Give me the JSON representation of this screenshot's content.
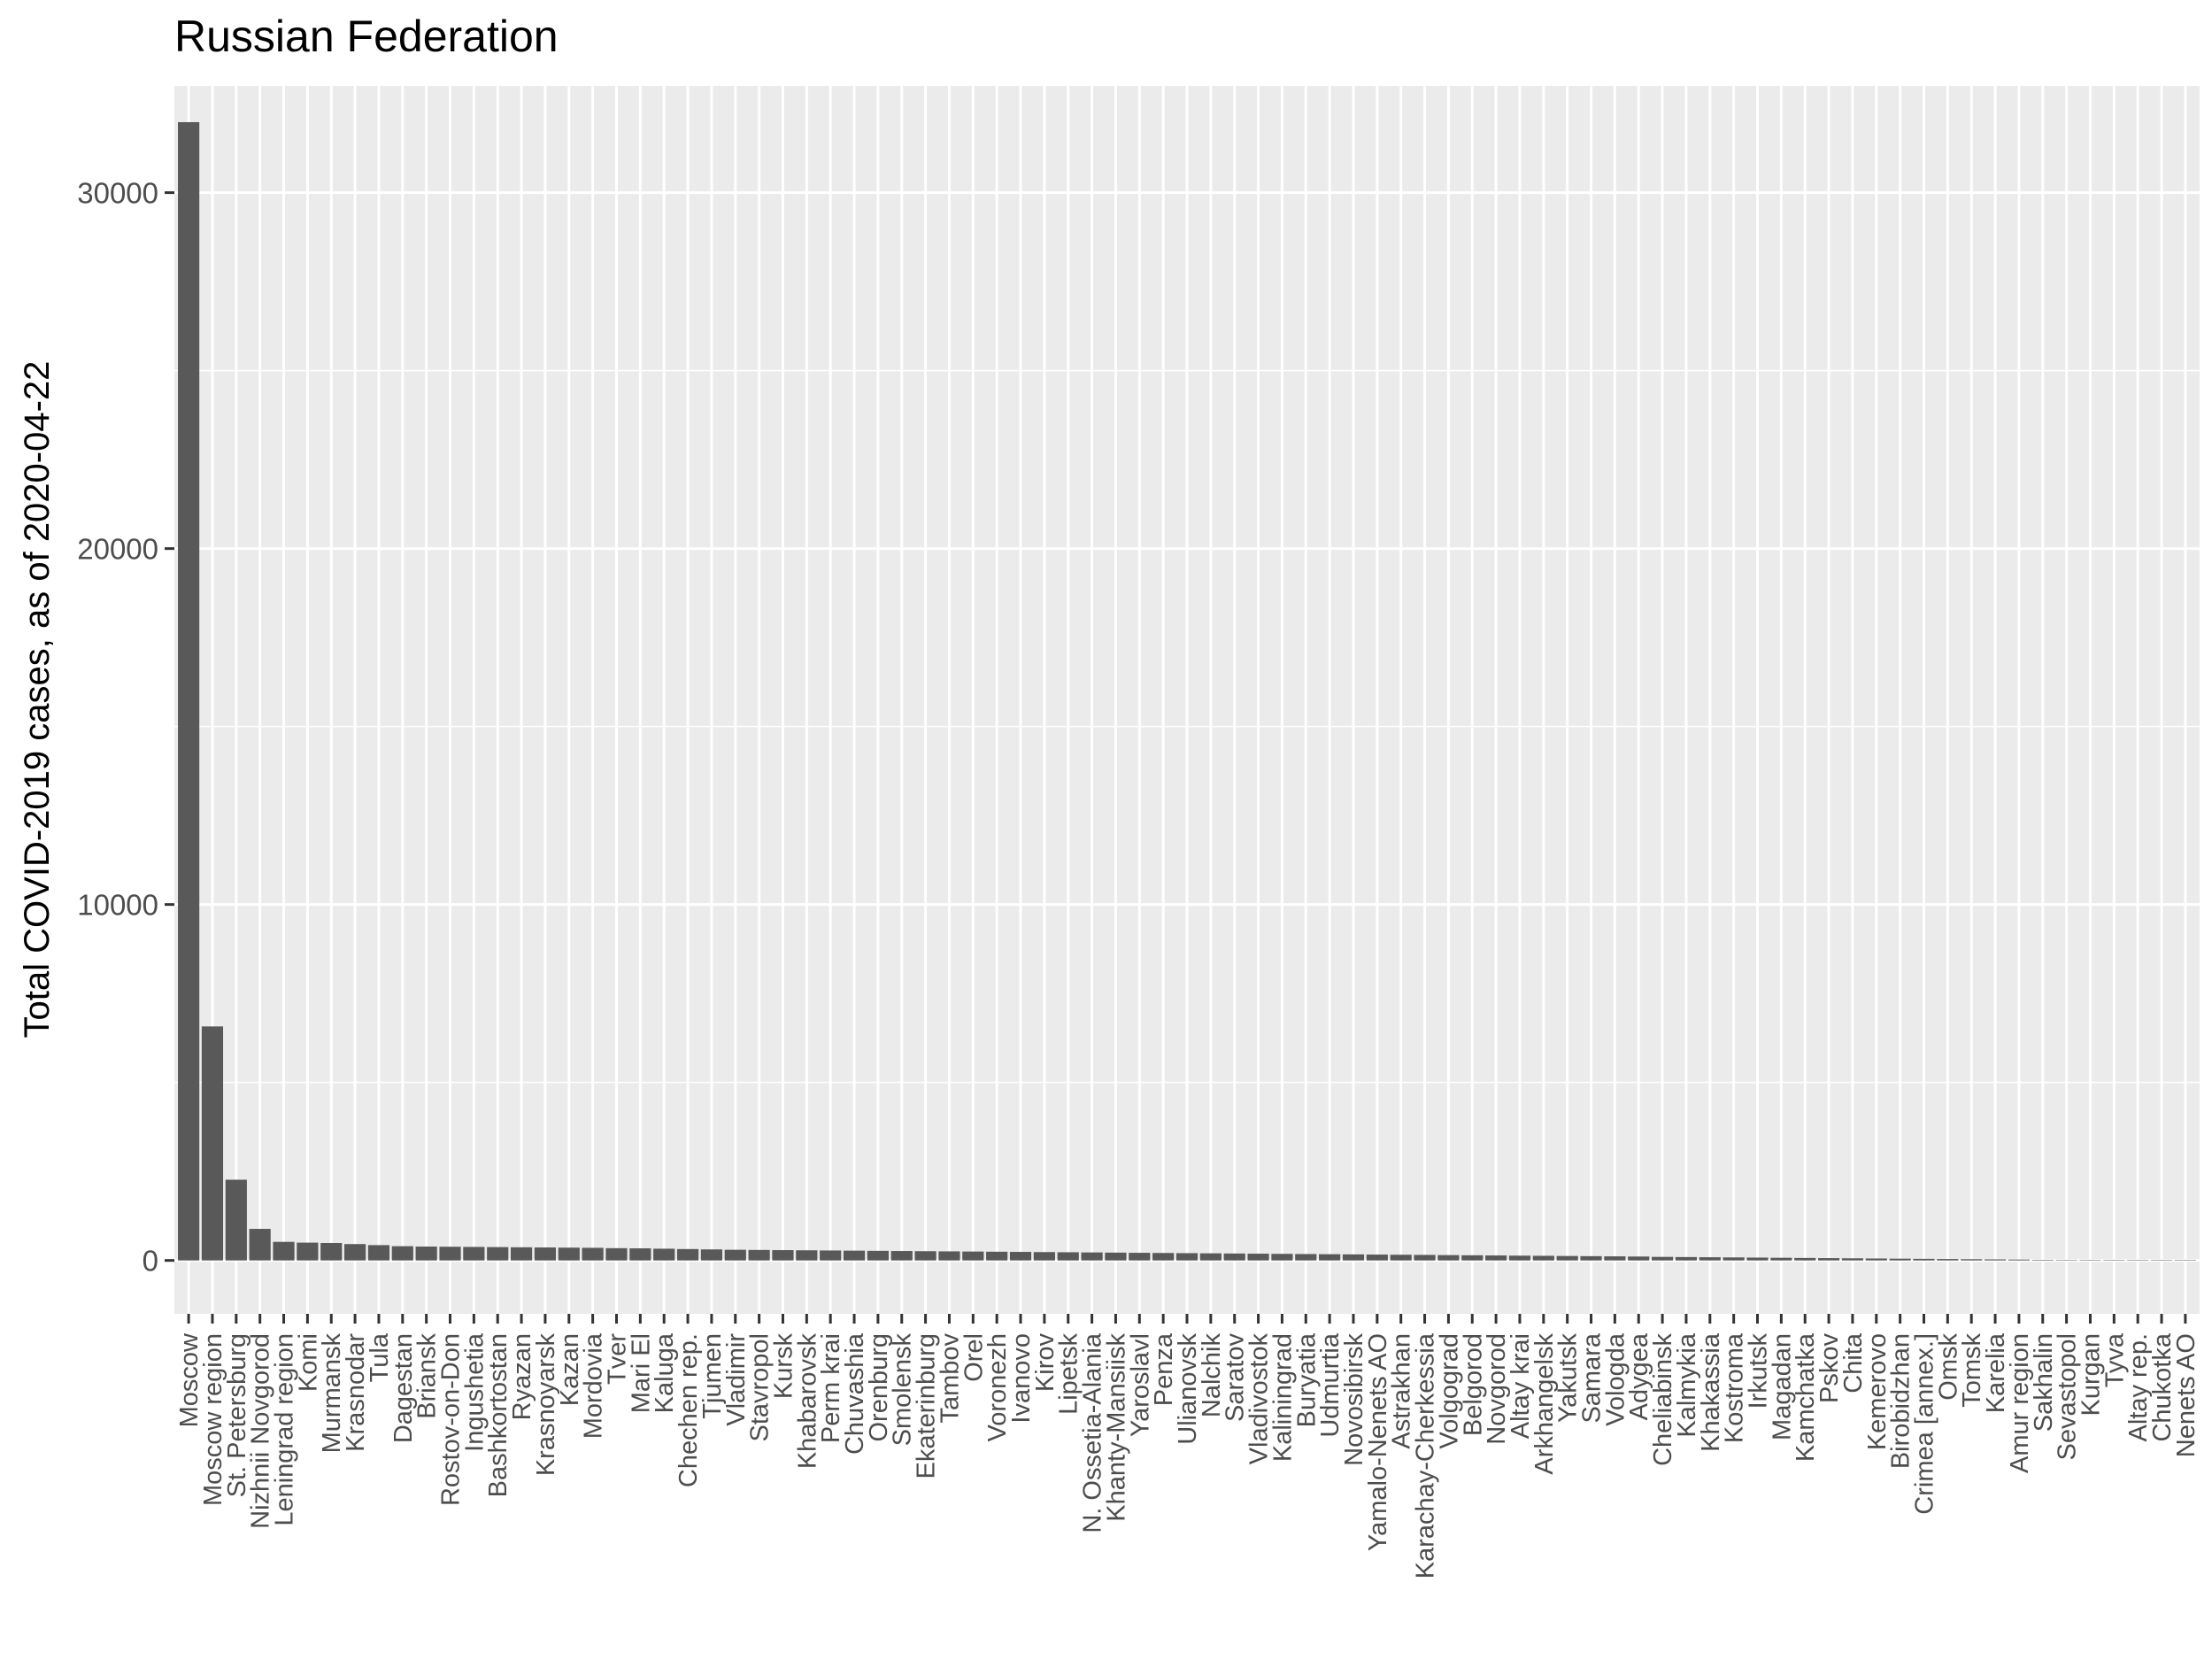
{
  "chart_data": {
    "type": "bar",
    "title": "Russian Federation",
    "xlabel": "",
    "ylabel": "Total COVID-2019 cases, as of 2020-04-22",
    "ylim": [
      -1500,
      33000
    ],
    "yticks": [
      0,
      10000,
      20000,
      30000
    ],
    "grid": true,
    "legend": "none",
    "colors": {
      "bar": "#595959",
      "panel": "#ebebeb",
      "grid": "#ffffff"
    },
    "categories": [
      "Moscow",
      "Moscow region",
      "St. Petersburg",
      "Nizhnii Novgorod",
      "Leningrad region",
      "Komi",
      "Murmansk",
      "Krasnodar",
      "Tula",
      "Dagestan",
      "Briansk",
      "Rostov-on-Don",
      "Ingushetia",
      "Bashkortostan",
      "Ryazan",
      "Krasnoyarsk",
      "Kazan",
      "Mordovia",
      "Tver",
      "Mari El",
      "Kaluga",
      "Chechen rep.",
      "Tjumen",
      "Vladimir",
      "Stavropol",
      "Kursk",
      "Khabarovsk",
      "Perm krai",
      "Chuvashia",
      "Orenburg",
      "Smolensk",
      "Ekaterinburg",
      "Tambov",
      "Orel",
      "Voronezh",
      "Ivanovo",
      "Kirov",
      "Lipetsk",
      "N. Ossetia-Alania",
      "Khanty-Mansiisk",
      "Yaroslavl",
      "Penza",
      "Ulianovsk",
      "Nalchik",
      "Saratov",
      "Vladivostok",
      "Kaliningrad",
      "Buryatia",
      "Udmurtia",
      "Novosibirsk",
      "Yamalo-Nenets AO",
      "Astrakhan",
      "Karachay-Cherkessia",
      "Volgograd",
      "Belgorod",
      "Novgorod",
      "Altay krai",
      "Arkhangelsk",
      "Yakutsk",
      "Samara",
      "Vologda",
      "Adygea",
      "Cheliabinsk",
      "Kalmykia",
      "Khakassia",
      "Kostroma",
      "Irkutsk",
      "Magadan",
      "Kamchatka",
      "Pskov",
      "Chita",
      "Kemerovo",
      "Birobidzhan",
      "Crimea [annex.]",
      "Omsk",
      "Tomsk",
      "Karelia",
      "Amur region",
      "Sakhalin",
      "Sevastopol",
      "Kurgan",
      "Tyva",
      "Altay rep.",
      "Chukotka",
      "Nenets AO"
    ],
    "values": [
      31981,
      6575,
      2268,
      887,
      522,
      500,
      490,
      460,
      430,
      400,
      390,
      385,
      380,
      375,
      370,
      365,
      360,
      355,
      345,
      340,
      330,
      320,
      310,
      300,
      295,
      290,
      285,
      280,
      275,
      270,
      265,
      260,
      255,
      250,
      245,
      240,
      235,
      230,
      225,
      220,
      215,
      210,
      205,
      200,
      195,
      190,
      185,
      180,
      175,
      170,
      165,
      160,
      155,
      150,
      145,
      140,
      135,
      130,
      125,
      120,
      115,
      110,
      100,
      95,
      90,
      85,
      80,
      75,
      70,
      65,
      60,
      55,
      50,
      45,
      40,
      35,
      30,
      25,
      15,
      12,
      10,
      8,
      5,
      2,
      1
    ]
  }
}
